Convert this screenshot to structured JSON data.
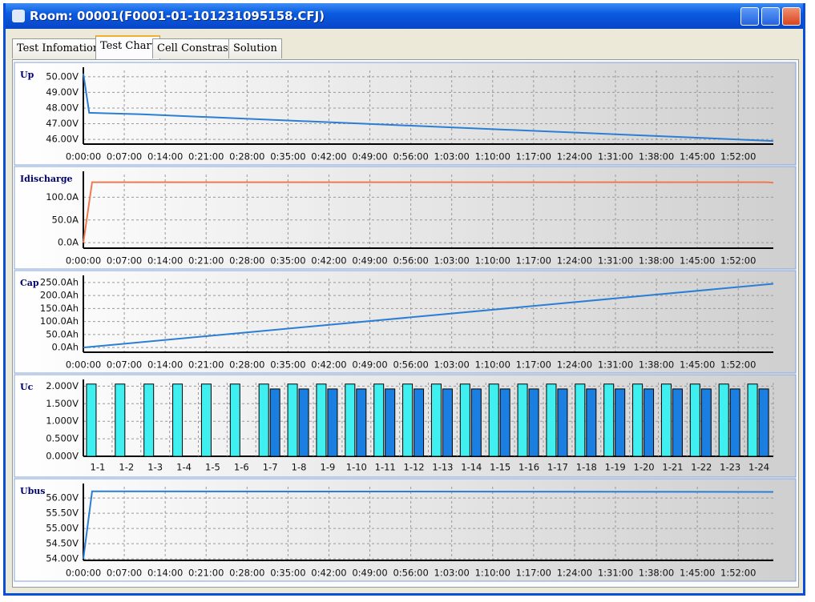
{
  "window": {
    "title": "Room: 00001(F0001-01-101231095158.CFJ)"
  },
  "tabs": [
    "Test Infomation",
    "Test Chart",
    "Cell Constrast",
    "Solution"
  ],
  "chart_data": [
    {
      "type": "line",
      "title": "Up",
      "color": "#2a7fd4",
      "x": [
        0,
        1,
        10,
        118
      ],
      "values": [
        50.2,
        47.7,
        47.6,
        45.9
      ],
      "xlim": [
        0,
        118
      ],
      "xticks": [
        {
          "value": 0,
          "label": "0:00:00"
        },
        {
          "value": 7,
          "label": "0:07:00"
        },
        {
          "value": 14,
          "label": "0:14:00"
        },
        {
          "value": 21,
          "label": "0:21:00"
        },
        {
          "value": 28,
          "label": "0:28:00"
        },
        {
          "value": 35,
          "label": "0:35:00"
        },
        {
          "value": 42,
          "label": "0:42:00"
        },
        {
          "value": 49,
          "label": "0:49:00"
        },
        {
          "value": 56,
          "label": "0:56:00"
        },
        {
          "value": 63,
          "label": "1:03:00"
        },
        {
          "value": 70,
          "label": "1:10:00"
        },
        {
          "value": 77,
          "label": "1:17:00"
        },
        {
          "value": 84,
          "label": "1:24:00"
        },
        {
          "value": 91,
          "label": "1:31:00"
        },
        {
          "value": 98,
          "label": "1:38:00"
        },
        {
          "value": 105,
          "label": "1:45:00"
        },
        {
          "value": 112,
          "label": "1:52:00"
        }
      ],
      "ylim": [
        45.7,
        50.4
      ],
      "yticks": [
        {
          "value": 46,
          "label": "46.00V"
        },
        {
          "value": 47,
          "label": "47.00V"
        },
        {
          "value": 48,
          "label": "48.00V"
        },
        {
          "value": 49,
          "label": "49.00V"
        },
        {
          "value": 50,
          "label": "50.00V"
        }
      ],
      "grid": true
    },
    {
      "type": "line",
      "title": "Idischarge",
      "color": "#f07850",
      "x": [
        0,
        1.5,
        117,
        118
      ],
      "values": [
        0,
        133,
        133,
        132
      ],
      "xlim": [
        0,
        118
      ],
      "xticks": [
        {
          "value": 0,
          "label": "0:00:00"
        },
        {
          "value": 7,
          "label": "0:07:00"
        },
        {
          "value": 14,
          "label": "0:14:00"
        },
        {
          "value": 21,
          "label": "0:21:00"
        },
        {
          "value": 28,
          "label": "0:28:00"
        },
        {
          "value": 35,
          "label": "0:35:00"
        },
        {
          "value": 42,
          "label": "0:42:00"
        },
        {
          "value": 49,
          "label": "0:49:00"
        },
        {
          "value": 56,
          "label": "0:56:00"
        },
        {
          "value": 63,
          "label": "1:03:00"
        },
        {
          "value": 70,
          "label": "1:10:00"
        },
        {
          "value": 77,
          "label": "1:17:00"
        },
        {
          "value": 84,
          "label": "1:24:00"
        },
        {
          "value": 91,
          "label": "1:31:00"
        },
        {
          "value": 98,
          "label": "1:38:00"
        },
        {
          "value": 105,
          "label": "1:45:00"
        },
        {
          "value": 112,
          "label": "1:52:00"
        }
      ],
      "ylim": [
        -12,
        150
      ],
      "yticks": [
        {
          "value": 0,
          "label": "0.0A"
        },
        {
          "value": 50,
          "label": "50.0A"
        },
        {
          "value": 100,
          "label": "100.0A"
        }
      ],
      "grid": true
    },
    {
      "type": "line",
      "title": "Cap",
      "color": "#2a7fd4",
      "x": [
        0,
        118
      ],
      "values": [
        0,
        245
      ],
      "xlim": [
        0,
        118
      ],
      "xticks": [
        {
          "value": 0,
          "label": "0:00:00"
        },
        {
          "value": 7,
          "label": "0:07:00"
        },
        {
          "value": 14,
          "label": "0:14:00"
        },
        {
          "value": 21,
          "label": "0:21:00"
        },
        {
          "value": 28,
          "label": "0:28:00"
        },
        {
          "value": 35,
          "label": "0:35:00"
        },
        {
          "value": 42,
          "label": "0:42:00"
        },
        {
          "value": 49,
          "label": "0:49:00"
        },
        {
          "value": 56,
          "label": "0:56:00"
        },
        {
          "value": 63,
          "label": "1:03:00"
        },
        {
          "value": 70,
          "label": "1:10:00"
        },
        {
          "value": 77,
          "label": "1:17:00"
        },
        {
          "value": 84,
          "label": "1:24:00"
        },
        {
          "value": 91,
          "label": "1:31:00"
        },
        {
          "value": 98,
          "label": "1:38:00"
        },
        {
          "value": 105,
          "label": "1:45:00"
        },
        {
          "value": 112,
          "label": "1:52:00"
        }
      ],
      "ylim": [
        -18,
        265
      ],
      "yticks": [
        {
          "value": 0,
          "label": "0.0Ah"
        },
        {
          "value": 50,
          "label": "50.0Ah"
        },
        {
          "value": 100,
          "label": "100.0Ah"
        },
        {
          "value": 150,
          "label": "150.0Ah"
        },
        {
          "value": 200,
          "label": "200.0Ah"
        },
        {
          "value": 250,
          "label": "250.0Ah"
        }
      ],
      "grid": true
    },
    {
      "type": "bar",
      "title": "Uc",
      "categories": [
        "1-1",
        "1-2",
        "1-3",
        "1-4",
        "1-5",
        "1-6",
        "1-7",
        "1-8",
        "1-9",
        "1-10",
        "1-11",
        "1-12",
        "1-13",
        "1-14",
        "1-15",
        "1-16",
        "1-17",
        "1-18",
        "1-19",
        "1-20",
        "1-21",
        "1-22",
        "1-23",
        "1-24"
      ],
      "series": [
        {
          "color": "#40f0f0",
          "values": [
            2.06,
            2.06,
            2.06,
            2.06,
            2.06,
            2.06,
            2.06,
            2.06,
            2.06,
            2.06,
            2.06,
            2.06,
            2.06,
            2.06,
            2.06,
            2.06,
            2.06,
            2.06,
            2.06,
            2.06,
            2.06,
            2.06,
            2.06,
            2.06
          ]
        },
        {
          "color": "#1a7fe0",
          "values": [
            null,
            null,
            null,
            null,
            null,
            null,
            1.92,
            1.92,
            1.92,
            1.92,
            1.92,
            1.92,
            1.92,
            1.92,
            1.92,
            1.92,
            1.92,
            1.92,
            1.92,
            1.92,
            1.92,
            1.92,
            1.92,
            1.92
          ]
        }
      ],
      "ylim": [
        0,
        2.1
      ],
      "yticks": [
        {
          "value": 0,
          "label": "0.000V"
        },
        {
          "value": 0.5,
          "label": "0.500V"
        },
        {
          "value": 1,
          "label": "1.000V"
        },
        {
          "value": 1.5,
          "label": "1.500V"
        },
        {
          "value": 2,
          "label": "2.000V"
        }
      ],
      "grid": true
    },
    {
      "type": "line",
      "title": "Ubus",
      "color": "#2a7fd4",
      "x": [
        0,
        1.5,
        118
      ],
      "values": [
        54,
        56.22,
        56.2
      ],
      "xlim": [
        0,
        118
      ],
      "xticks": [
        {
          "value": 0,
          "label": "0:00:00"
        },
        {
          "value": 7,
          "label": "0:07:00"
        },
        {
          "value": 14,
          "label": "0:14:00"
        },
        {
          "value": 21,
          "label": "0:21:00"
        },
        {
          "value": 28,
          "label": "0:28:00"
        },
        {
          "value": 35,
          "label": "0:35:00"
        },
        {
          "value": 42,
          "label": "0:42:00"
        },
        {
          "value": 49,
          "label": "0:49:00"
        },
        {
          "value": 56,
          "label": "0:56:00"
        },
        {
          "value": 63,
          "label": "1:03:00"
        },
        {
          "value": 70,
          "label": "1:10:00"
        },
        {
          "value": 77,
          "label": "1:17:00"
        },
        {
          "value": 84,
          "label": "1:24:00"
        },
        {
          "value": 91,
          "label": "1:31:00"
        },
        {
          "value": 98,
          "label": "1:38:00"
        },
        {
          "value": 105,
          "label": "1:45:00"
        },
        {
          "value": 112,
          "label": "1:52:00"
        }
      ],
      "ylim": [
        53.95,
        56.37
      ],
      "yticks": [
        {
          "value": 54,
          "label": "54.00V"
        },
        {
          "value": 54.5,
          "label": "54.50V"
        },
        {
          "value": 55,
          "label": "55.00V"
        },
        {
          "value": 55.5,
          "label": "55.50V"
        },
        {
          "value": 56,
          "label": "56.00V"
        }
      ],
      "grid": true
    }
  ]
}
